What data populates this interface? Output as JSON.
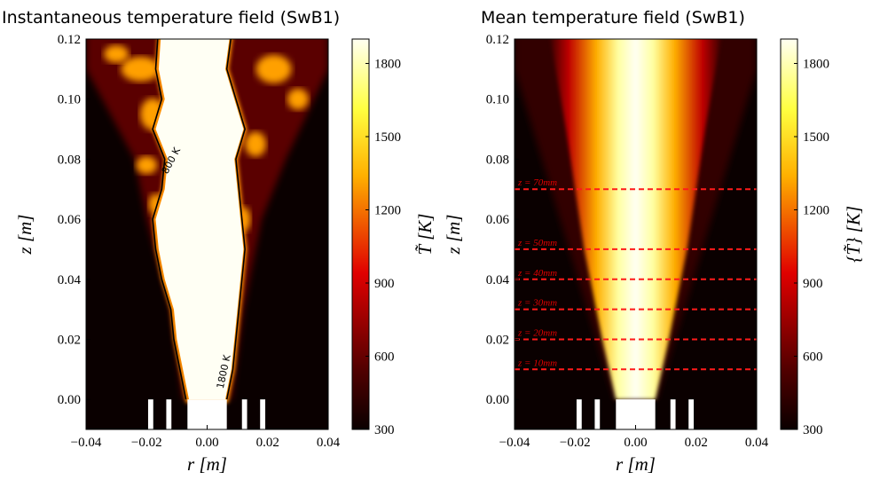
{
  "chart_data": [
    {
      "type": "heatmap",
      "title": "Instantaneous temperature field (SwB1)",
      "xlabel": "r [m]",
      "ylabel": "z [m]",
      "xlim": [
        -0.04,
        0.04
      ],
      "ylim": [
        -0.01,
        0.12
      ],
      "xticks": [
        {
          "value": -0.04,
          "label": "−0.04"
        },
        {
          "value": -0.02,
          "label": "−0.02"
        },
        {
          "value": 0,
          "label": "0.00"
        },
        0.02,
        0.04
      ],
      "yticks": [
        {
          "value": 0,
          "label": "0.00"
        },
        0.02,
        0.04,
        0.06,
        0.08,
        {
          "value": 0.1,
          "label": "0.10"
        },
        0.12
      ],
      "colorbar": {
        "label": "T̃ [K]",
        "lim": [
          300,
          1900
        ],
        "ticks": [
          300,
          600,
          900,
          1200,
          1500,
          1800
        ]
      },
      "contour_labels": [
        "800 K",
        "1800 K"
      ]
    },
    {
      "type": "heatmap",
      "title": "Mean temperature field (SwB1)",
      "xlabel": "r [m]",
      "ylabel": "z [m]",
      "xlim": [
        -0.04,
        0.04
      ],
      "ylim": [
        -0.01,
        0.12
      ],
      "xticks": [
        {
          "value": -0.04,
          "label": "−0.04"
        },
        {
          "value": -0.02,
          "label": "−0.02"
        },
        {
          "value": 0,
          "label": "0.00"
        },
        0.02,
        0.04
      ],
      "yticks": [
        {
          "value": 0,
          "label": "0.00"
        },
        0.02,
        0.04,
        0.06,
        0.08,
        {
          "value": 0.1,
          "label": "0.10"
        },
        0.12
      ],
      "colorbar": {
        "label": "{T̃} [K]",
        "lim": [
          300,
          1900
        ],
        "ticks": [
          300,
          600,
          900,
          1200,
          1500,
          1800
        ]
      },
      "reference_lines": [
        {
          "z": 0.07,
          "label": "z = 70mm"
        },
        {
          "z": 0.05,
          "label": "z = 50mm"
        },
        {
          "z": 0.04,
          "label": "z = 40mm"
        },
        {
          "z": 0.03,
          "label": "z = 30mm"
        },
        {
          "z": 0.02,
          "label": "z = 20mm"
        },
        {
          "z": 0.01,
          "label": "z = 10mm"
        }
      ]
    }
  ]
}
